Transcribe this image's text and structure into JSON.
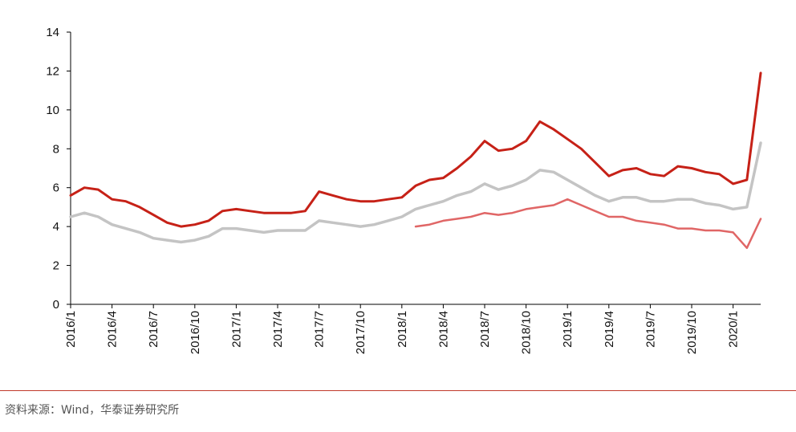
{
  "source_note": "资料来源：Wind，华泰证券研究所",
  "colors": {
    "rule": "#c0392b"
  },
  "chart_data": {
    "type": "line",
    "ylim": [
      0,
      14
    ],
    "yticks": [
      0,
      2,
      4,
      6,
      8,
      10,
      12,
      14
    ],
    "xticks": [
      "2016/1",
      "2016/4",
      "2016/7",
      "2016/10",
      "2017/1",
      "2017/4",
      "2017/7",
      "2017/10",
      "2018/1",
      "2018/4",
      "2018/7",
      "2018/10",
      "2019/1",
      "2019/4",
      "2019/7",
      "2019/10",
      "2020/1"
    ],
    "x": [
      "2016/1",
      "2016/2",
      "2016/3",
      "2016/4",
      "2016/5",
      "2016/6",
      "2016/7",
      "2016/8",
      "2016/9",
      "2016/10",
      "2016/11",
      "2016/12",
      "2017/1",
      "2017/2",
      "2017/3",
      "2017/4",
      "2017/5",
      "2017/6",
      "2017/7",
      "2017/8",
      "2017/9",
      "2017/10",
      "2017/11",
      "2017/12",
      "2018/1",
      "2018/2",
      "2018/3",
      "2018/4",
      "2018/5",
      "2018/6",
      "2018/7",
      "2018/8",
      "2018/9",
      "2018/10",
      "2018/11",
      "2018/12",
      "2019/1",
      "2019/2",
      "2019/3",
      "2019/4",
      "2019/5",
      "2019/6",
      "2019/7",
      "2019/8",
      "2019/9",
      "2019/10",
      "2019/11",
      "2019/12",
      "2020/1",
      "2020/2",
      "2020/3"
    ],
    "series": [
      {
        "color": "#c62117",
        "width": 3,
        "values": [
          5.6,
          6.0,
          5.9,
          5.4,
          5.3,
          5.0,
          4.6,
          4.2,
          4.0,
          4.1,
          4.3,
          4.8,
          4.9,
          4.8,
          4.7,
          4.7,
          4.7,
          4.8,
          5.8,
          5.6,
          5.4,
          5.3,
          5.3,
          5.4,
          5.5,
          6.1,
          6.4,
          6.5,
          7.0,
          7.6,
          8.4,
          7.9,
          8.0,
          8.4,
          9.4,
          9.0,
          8.5,
          8.0,
          7.3,
          6.6,
          6.9,
          7.0,
          6.7,
          6.6,
          7.1,
          7.0,
          6.8,
          6.7,
          6.2,
          6.4,
          11.9
        ]
      },
      {
        "color": "#c4c4c4",
        "width": 3.5,
        "values": [
          4.5,
          4.7,
          4.5,
          4.1,
          3.9,
          3.7,
          3.4,
          3.3,
          3.2,
          3.3,
          3.5,
          3.9,
          3.9,
          3.8,
          3.7,
          3.8,
          3.8,
          3.8,
          4.3,
          4.2,
          4.1,
          4.0,
          4.1,
          4.3,
          4.5,
          4.9,
          5.1,
          5.3,
          5.6,
          5.8,
          6.2,
          5.9,
          6.1,
          6.4,
          6.9,
          6.8,
          6.4,
          6.0,
          5.6,
          5.3,
          5.5,
          5.5,
          5.3,
          5.3,
          5.4,
          5.4,
          5.2,
          5.1,
          4.9,
          5.0,
          8.3
        ]
      },
      {
        "color": "#e06666",
        "width": 2.5,
        "start": "2018/2",
        "values": [
          null,
          null,
          null,
          null,
          null,
          null,
          null,
          null,
          null,
          null,
          null,
          null,
          null,
          null,
          null,
          null,
          null,
          null,
          null,
          null,
          null,
          null,
          null,
          null,
          null,
          4.0,
          4.1,
          4.3,
          4.4,
          4.5,
          4.7,
          4.6,
          4.7,
          4.9,
          5.0,
          5.1,
          5.4,
          5.1,
          4.8,
          4.5,
          4.5,
          4.3,
          4.2,
          4.1,
          3.9,
          3.9,
          3.8,
          3.8,
          3.7,
          2.9,
          4.4
        ]
      }
    ]
  }
}
